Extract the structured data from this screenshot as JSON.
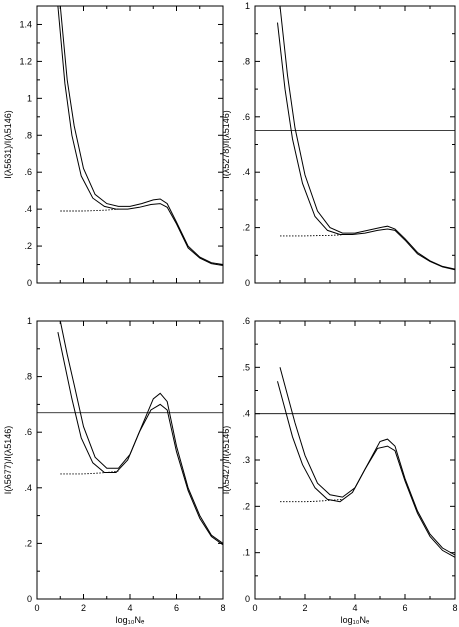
{
  "chart_data": [
    {
      "type": "line",
      "panel": "top-left",
      "ylabel": "I(λ5631)/I(λ5146)",
      "xlabel": "",
      "xlim": [
        0,
        8
      ],
      "ylim": [
        0,
        1.5
      ],
      "x_ticks": [
        0,
        2,
        4,
        6,
        8
      ],
      "x_tick_labels": [
        "",
        "",
        "",
        "",
        ""
      ],
      "y_ticks": [
        0,
        0.2,
        0.4,
        0.6,
        0.8,
        1.0,
        1.2,
        1.4
      ],
      "y_tick_labels": [
        "0",
        ".2",
        ".4",
        ".6",
        ".8",
        "1",
        "1.2",
        "1.4"
      ],
      "hline": null,
      "series": [
        {
          "style": "solid",
          "stroke": "#000000",
          "x": [
            1.0,
            1.3,
            1.6,
            2.0,
            2.5,
            3.0,
            3.5,
            4.0,
            4.5,
            5.0,
            5.3,
            5.6,
            6.0,
            6.5,
            7.0,
            7.5,
            8.0
          ],
          "y": [
            1.5,
            1.1,
            0.85,
            0.62,
            0.48,
            0.43,
            0.415,
            0.415,
            0.43,
            0.45,
            0.455,
            0.43,
            0.33,
            0.2,
            0.14,
            0.11,
            0.1
          ]
        },
        {
          "style": "solid",
          "stroke": "#000000",
          "x": [
            0.9,
            1.2,
            1.5,
            1.9,
            2.4,
            2.9,
            3.4,
            3.9,
            4.4,
            4.9,
            5.3,
            5.6,
            6.0,
            6.5,
            7.0,
            7.5,
            8.0
          ],
          "y": [
            1.5,
            1.08,
            0.8,
            0.58,
            0.46,
            0.415,
            0.4,
            0.4,
            0.41,
            0.425,
            0.43,
            0.41,
            0.32,
            0.19,
            0.135,
            0.105,
            0.095
          ]
        },
        {
          "style": "dotted",
          "stroke": "#000000",
          "x": [
            1.0,
            1.5,
            2.0,
            2.5,
            3.0,
            3.5
          ],
          "y": [
            0.39,
            0.39,
            0.39,
            0.392,
            0.395,
            0.4
          ]
        }
      ]
    },
    {
      "type": "line",
      "panel": "top-right",
      "ylabel": "I(λ5278)/I(λ5146)",
      "xlabel": "",
      "xlim": [
        0,
        8
      ],
      "ylim": [
        0,
        1.0
      ],
      "x_ticks": [
        0,
        2,
        4,
        6,
        8
      ],
      "x_tick_labels": [
        "",
        "",
        "",
        "",
        ""
      ],
      "y_ticks": [
        0,
        0.2,
        0.4,
        0.6,
        0.8,
        1.0
      ],
      "y_tick_labels": [
        "0",
        ".2",
        ".4",
        ".6",
        ".8",
        "1"
      ],
      "hline": 0.55,
      "series": [
        {
          "style": "solid",
          "stroke": "#000000",
          "x": [
            1.0,
            1.3,
            1.6,
            2.0,
            2.5,
            3.0,
            3.5,
            4.0,
            4.5,
            5.0,
            5.3,
            5.6,
            6.0,
            6.5,
            7.0,
            7.5,
            8.0
          ],
          "y": [
            1.0,
            0.75,
            0.56,
            0.39,
            0.26,
            0.2,
            0.18,
            0.18,
            0.19,
            0.2,
            0.205,
            0.195,
            0.16,
            0.11,
            0.08,
            0.06,
            0.05
          ]
        },
        {
          "style": "solid",
          "stroke": "#000000",
          "x": [
            0.9,
            1.2,
            1.5,
            1.9,
            2.4,
            2.9,
            3.4,
            3.9,
            4.4,
            4.9,
            5.3,
            5.6,
            6.0,
            6.5,
            7.0,
            7.5,
            8.0
          ],
          "y": [
            0.94,
            0.7,
            0.52,
            0.36,
            0.24,
            0.19,
            0.175,
            0.175,
            0.18,
            0.19,
            0.195,
            0.19,
            0.155,
            0.105,
            0.078,
            0.058,
            0.048
          ]
        },
        {
          "style": "dotted",
          "stroke": "#000000",
          "x": [
            1.0,
            1.5,
            2.0,
            2.5,
            3.0,
            3.5
          ],
          "y": [
            0.17,
            0.17,
            0.17,
            0.171,
            0.172,
            0.174
          ]
        }
      ]
    },
    {
      "type": "line",
      "panel": "bottom-left",
      "ylabel": "I(λ5677)/I(λ5146)",
      "xlabel": "log₁₀Nₑ",
      "xlim": [
        0,
        8
      ],
      "ylim": [
        0,
        1.0
      ],
      "x_ticks": [
        0,
        2,
        4,
        6,
        8
      ],
      "x_tick_labels": [
        "0",
        "2",
        "4",
        "6",
        "8"
      ],
      "y_ticks": [
        0,
        0.2,
        0.4,
        0.6,
        0.8,
        1.0
      ],
      "y_tick_labels": [
        "0",
        ".2",
        ".4",
        ".6",
        ".8",
        "1"
      ],
      "hline": 0.67,
      "series": [
        {
          "style": "solid",
          "stroke": "#000000",
          "x": [
            1.0,
            1.3,
            1.6,
            2.0,
            2.5,
            3.0,
            3.5,
            4.0,
            4.5,
            5.0,
            5.3,
            5.6,
            6.0,
            6.5,
            7.0,
            7.5,
            8.0
          ],
          "y": [
            1.0,
            0.88,
            0.77,
            0.62,
            0.51,
            0.47,
            0.47,
            0.52,
            0.62,
            0.72,
            0.74,
            0.71,
            0.55,
            0.4,
            0.3,
            0.23,
            0.2
          ]
        },
        {
          "style": "solid",
          "stroke": "#000000",
          "x": [
            0.9,
            1.2,
            1.5,
            1.9,
            2.4,
            2.9,
            3.4,
            3.9,
            4.4,
            4.9,
            5.3,
            5.6,
            6.0,
            6.5,
            7.0,
            7.5,
            8.0
          ],
          "y": [
            0.96,
            0.84,
            0.72,
            0.58,
            0.49,
            0.455,
            0.455,
            0.5,
            0.6,
            0.68,
            0.7,
            0.68,
            0.53,
            0.39,
            0.29,
            0.225,
            0.195
          ]
        },
        {
          "style": "dotted",
          "stroke": "#000000",
          "x": [
            1.0,
            1.5,
            2.0,
            2.5,
            3.0,
            3.5
          ],
          "y": [
            0.45,
            0.45,
            0.45,
            0.452,
            0.455,
            0.46
          ]
        }
      ]
    },
    {
      "type": "line",
      "panel": "bottom-right",
      "ylabel": "I(λ5427)/I(λ5146)",
      "xlabel": "log₁₀Nₑ",
      "xlim": [
        0,
        8
      ],
      "ylim": [
        0,
        0.6
      ],
      "x_ticks": [
        0,
        2,
        4,
        6,
        8
      ],
      "x_tick_labels": [
        "0",
        "2",
        "4",
        "6",
        "8"
      ],
      "y_ticks": [
        0,
        0.1,
        0.2,
        0.3,
        0.4,
        0.5,
        0.6
      ],
      "y_tick_labels": [
        "0",
        ".1",
        ".2",
        ".3",
        ".4",
        ".5",
        ".6"
      ],
      "hline": 0.4,
      "series": [
        {
          "style": "solid",
          "stroke": "#000000",
          "x": [
            1.0,
            1.3,
            1.6,
            2.0,
            2.5,
            3.0,
            3.5,
            4.0,
            4.5,
            5.0,
            5.3,
            5.6,
            6.0,
            6.5,
            7.0,
            7.5,
            8.0
          ],
          "y": [
            0.5,
            0.44,
            0.38,
            0.31,
            0.25,
            0.225,
            0.22,
            0.24,
            0.29,
            0.34,
            0.345,
            0.33,
            0.26,
            0.19,
            0.14,
            0.11,
            0.095
          ]
        },
        {
          "style": "solid",
          "stroke": "#000000",
          "x": [
            0.9,
            1.2,
            1.5,
            1.9,
            2.4,
            2.9,
            3.4,
            3.9,
            4.4,
            4.9,
            5.3,
            5.6,
            6.0,
            6.5,
            7.0,
            7.5,
            8.0
          ],
          "y": [
            0.47,
            0.41,
            0.35,
            0.29,
            0.24,
            0.215,
            0.21,
            0.23,
            0.28,
            0.325,
            0.33,
            0.32,
            0.255,
            0.185,
            0.135,
            0.105,
            0.09
          ]
        },
        {
          "style": "dotted",
          "stroke": "#000000",
          "x": [
            1.0,
            1.5,
            2.0,
            2.5,
            3.0,
            3.5
          ],
          "y": [
            0.21,
            0.21,
            0.21,
            0.211,
            0.213,
            0.215
          ]
        }
      ]
    }
  ]
}
